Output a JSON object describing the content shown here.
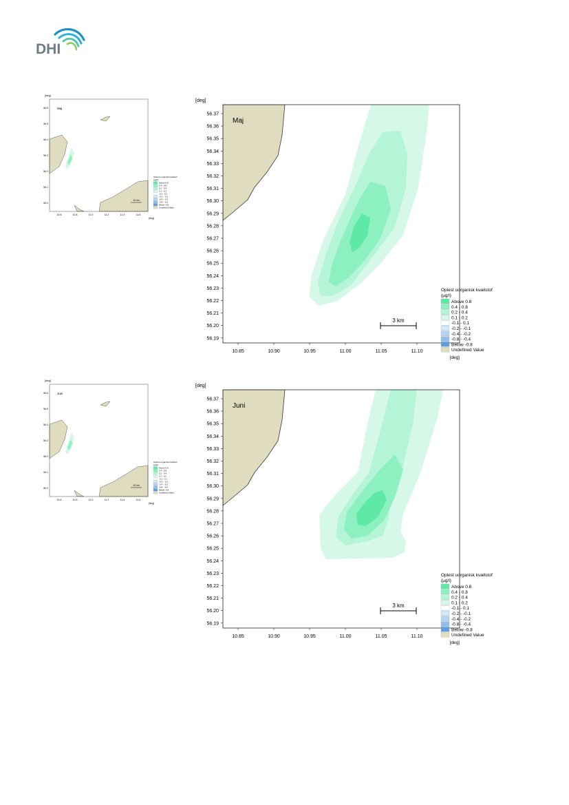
{
  "logo": {
    "text": "DHI"
  },
  "colors": {
    "land": "#dfdcc0",
    "land_edge": "#333333",
    "frame": "#222222",
    "legend": {
      "Above 0.8": "#5eeaa6",
      "0.4 - 0.8": "#8cf0c0",
      "0.2 - 0.4": "#b4f4d7",
      "0.1 - 0.2": "#d6f8e8",
      "-0.1 - 0.1": "#ffffff",
      "-0.2 - -0.1": "#d4e6f7",
      "-0.4 - -0.2": "#b6d4f1",
      "-0.8 - -0.4": "#92bde9",
      "Below -0.8": "#5d9ee0",
      "Undefined Value": "#dfdcc0"
    }
  },
  "common": {
    "x_unit": "[deg]",
    "y_unit": "[deg]",
    "x_ticks": [
      "10.85",
      "10.90",
      "10.95",
      "11.00",
      "11.05",
      "11.10"
    ],
    "y_ticks": [
      "56.37",
      "56.36",
      "56.35",
      "56.34",
      "56.33",
      "56.32",
      "56.31",
      "56.30",
      "56.29",
      "56.28",
      "56.27",
      "56.26",
      "56.25",
      "56.24",
      "56.23",
      "56.22",
      "56.21",
      "56.20",
      "56.19"
    ],
    "scale_bar": "3 km",
    "legend_title": [
      "Oplest uorganisk kvælstof",
      "(µg/l)"
    ],
    "legend_items": [
      "Above  0.8",
      "0.4 -  0.8",
      "0.2 -  0.4",
      "0.1 -  0.2",
      "-0.1 -  0.1",
      "-0.2 - -0.1",
      "-0.4 - -0.2",
      "-0.8 - -0.4",
      "Below -0.8",
      "Undefined Value"
    ],
    "legend_keys": [
      "Above 0.8",
      "0.4 - 0.8",
      "0.2 - 0.4",
      "0.1 - 0.2",
      "-0.1 - 0.1",
      "-0.2 - -0.1",
      "-0.4 - -0.2",
      "-0.8 - -0.4",
      "Below -0.8",
      "Undefined Value"
    ]
  },
  "overview": {
    "y_ticks": [
      "56.6",
      "56.5",
      "56.4",
      "56.3",
      "56.2",
      "56.1",
      "56.0"
    ],
    "x_ticks": [
      "10.6",
      "10.8",
      "11.0",
      "11.2",
      "11.4",
      "11.6"
    ],
    "scale_bar": "10 km"
  },
  "panels": [
    {
      "month": "Maj"
    },
    {
      "month": "Juni"
    }
  ]
}
